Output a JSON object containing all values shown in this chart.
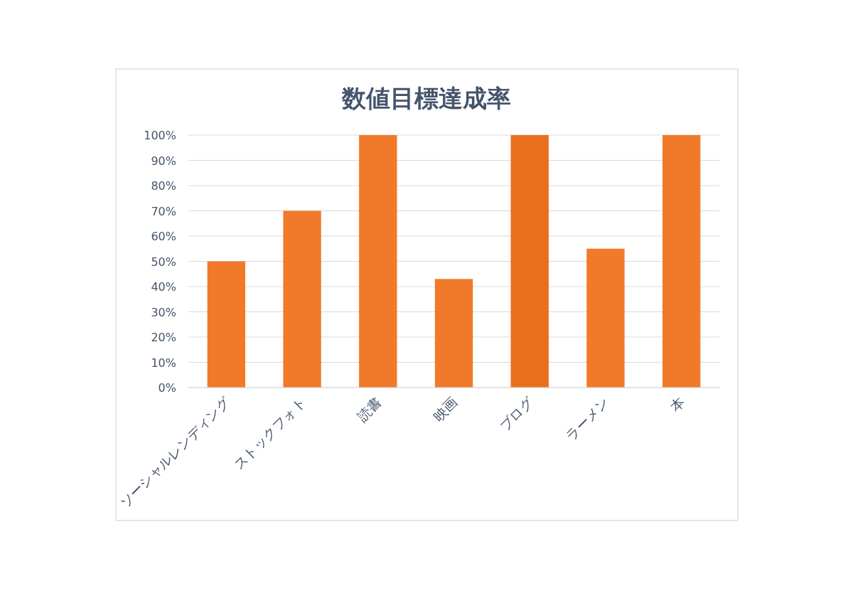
{
  "chart_data": {
    "type": "bar",
    "title": "数値目標達成率",
    "categories": [
      "ソーシャルレンディング",
      "ストックフォト",
      "読書",
      "映画",
      "ブログ",
      "ラーメン",
      "本"
    ],
    "values": [
      50,
      70,
      100,
      43,
      100,
      55,
      100
    ],
    "colors": [
      "#f07a2a",
      "#f07a2a",
      "#f07a2a",
      "#f07a2a",
      "#e8701c",
      "#f07a2a",
      "#f07a2a"
    ],
    "ylim": [
      0,
      100
    ],
    "yticks": [
      {
        "value": 0,
        "label": "0%"
      },
      {
        "value": 10,
        "label": "10%"
      },
      {
        "value": 20,
        "label": "20%"
      },
      {
        "value": 30,
        "label": "30%"
      },
      {
        "value": 40,
        "label": "40%"
      },
      {
        "value": 50,
        "label": "50%"
      },
      {
        "value": 60,
        "label": "60%"
      },
      {
        "value": 70,
        "label": "70%"
      },
      {
        "value": 80,
        "label": "80%"
      },
      {
        "value": 90,
        "label": "90%"
      },
      {
        "value": 100,
        "label": "100%"
      }
    ],
    "grid": "y"
  }
}
